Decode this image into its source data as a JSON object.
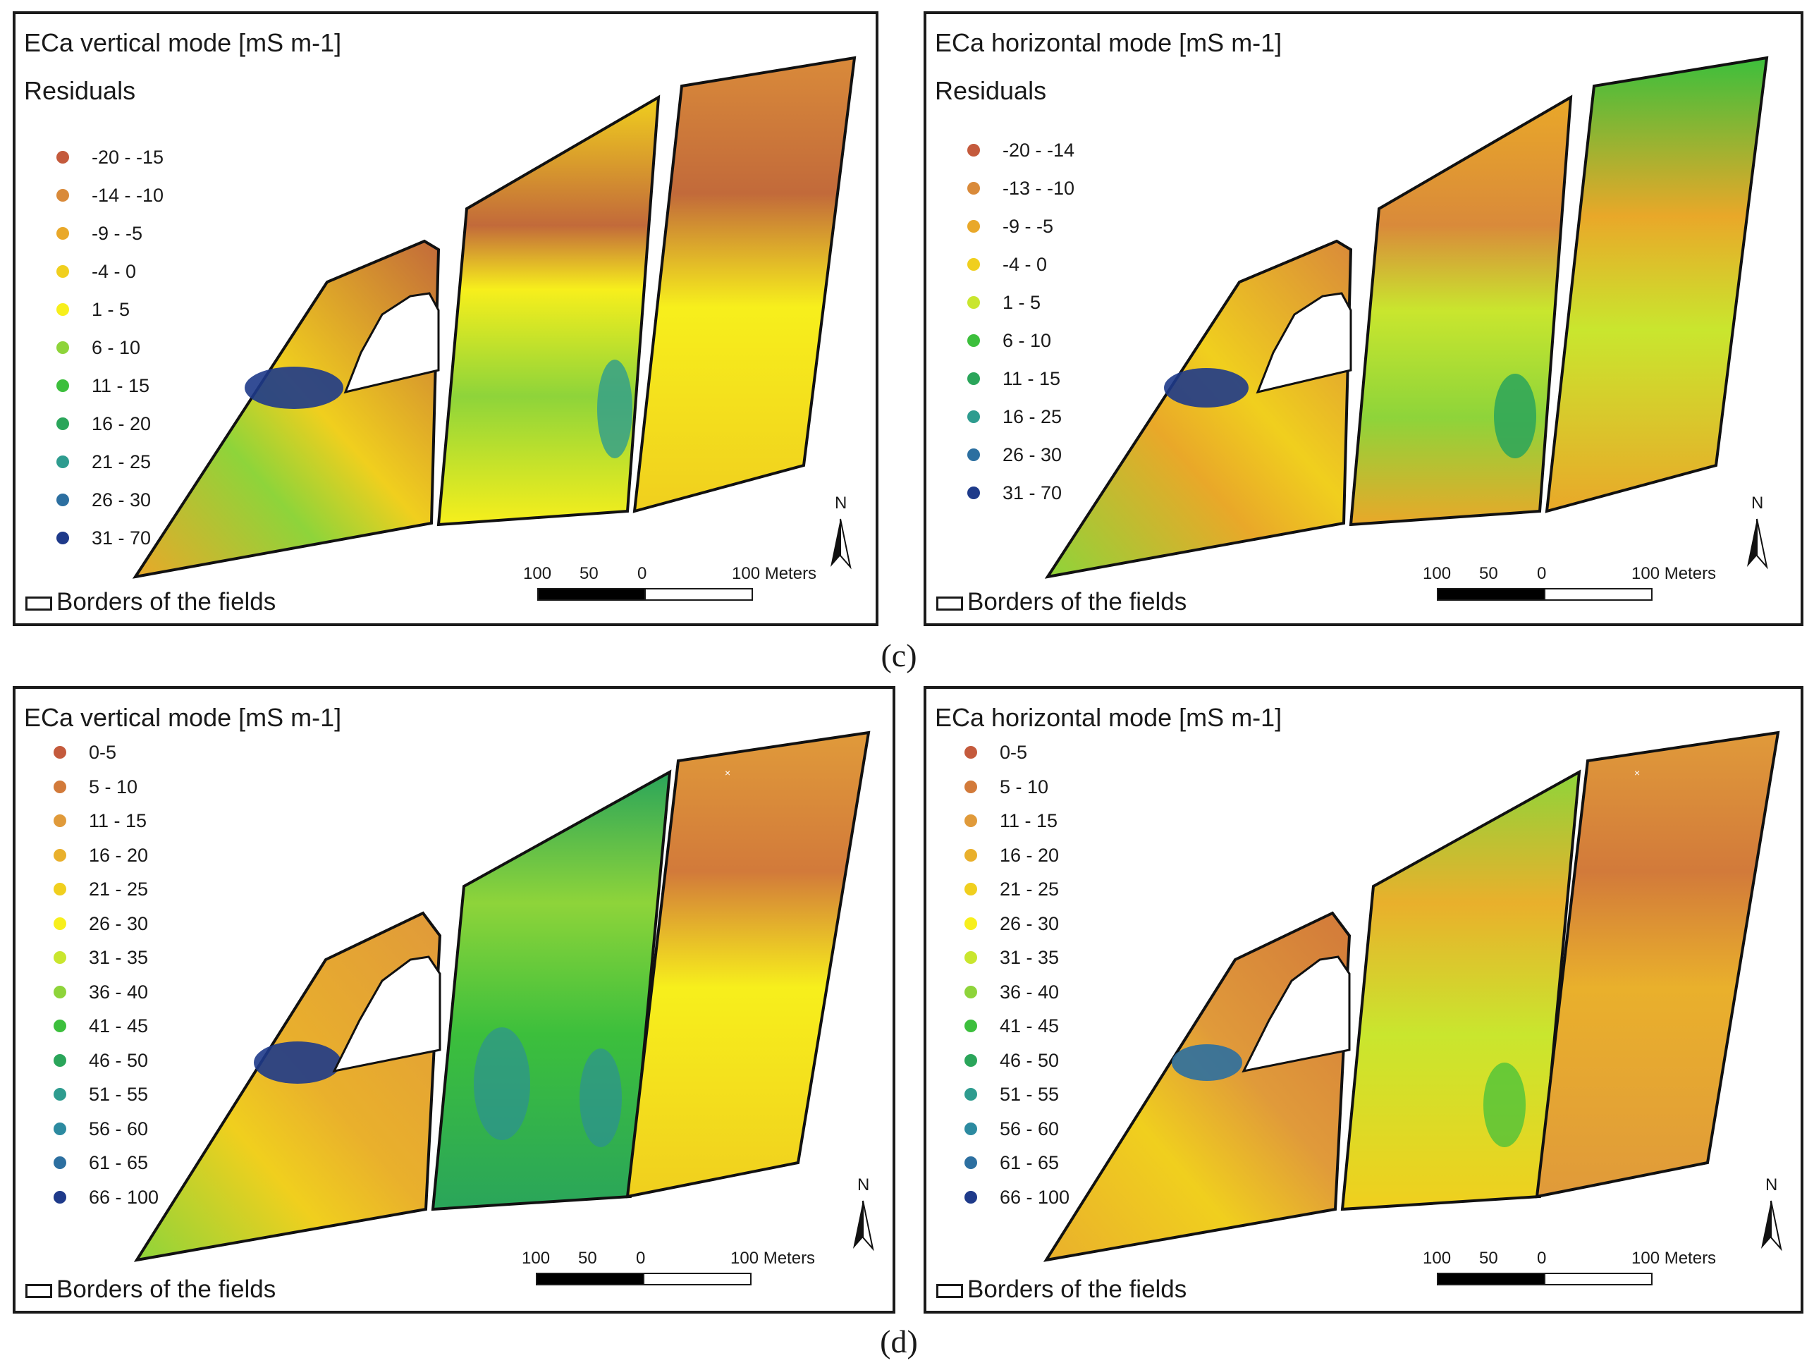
{
  "figure": {
    "captions": [
      "(c)",
      "(d)"
    ]
  },
  "colors": {
    "dark_blue": "#1e3a8a",
    "blue": "#2c6fa0",
    "teal": "#2e9c8f",
    "green_dark": "#2aa55a",
    "green": "#3cbf3c",
    "green_light": "#8ed43a",
    "yellow_green": "#c9e62e",
    "yellow": "#f7ef1c",
    "yellow_orange": "#f0cf1e",
    "orange": "#e9a829",
    "orange_dark": "#d98a3a",
    "brown": "#c26a3a",
    "red_brown": "#c45a3c"
  },
  "panels": [
    {
      "id": "c-left",
      "title": "ECa vertical mode  [mS m-1]",
      "subtitle": "Residuals",
      "legend": [
        {
          "label": "-20 - -15",
          "color": "#c45a3c"
        },
        {
          "label": "-14 - -10",
          "color": "#d98a3a"
        },
        {
          "label": "-9 - -5",
          "color": "#e9a829"
        },
        {
          "label": "-4 - 0",
          "color": "#f0cf1e"
        },
        {
          "label": "1 - 5",
          "color": "#f7ef1c"
        },
        {
          "label": "6 - 10",
          "color": "#8ed43a"
        },
        {
          "label": "11 - 15",
          "color": "#3cbf3c"
        },
        {
          "label": "16 - 20",
          "color": "#2aa55a"
        },
        {
          "label": "21 - 25",
          "color": "#2e9c8f"
        },
        {
          "label": "26 - 30",
          "color": "#2c6fa0"
        },
        {
          "label": "31 - 70",
          "color": "#1e3a8a"
        }
      ],
      "borders_label": "Borders of the fields",
      "scale": {
        "ticks": [
          "100",
          "50",
          "0",
          "100 Meters"
        ]
      },
      "north": "N"
    },
    {
      "id": "c-right",
      "title": "ECa horizontal mode  [mS m-1]",
      "subtitle": "Residuals",
      "legend": [
        {
          "label": "-20 - -14",
          "color": "#c45a3c"
        },
        {
          "label": "-13 - -10",
          "color": "#d98a3a"
        },
        {
          "label": "-9 - -5",
          "color": "#e9a829"
        },
        {
          "label": "-4 - 0",
          "color": "#f0cf1e"
        },
        {
          "label": "1 - 5",
          "color": "#c9e62e"
        },
        {
          "label": "6 - 10",
          "color": "#3cbf3c"
        },
        {
          "label": "11 - 15",
          "color": "#2aa55a"
        },
        {
          "label": "16 - 25",
          "color": "#2e9c8f"
        },
        {
          "label": "26 - 30",
          "color": "#2c6fa0"
        },
        {
          "label": "31 - 70",
          "color": "#1e3a8a"
        }
      ],
      "borders_label": "Borders of the fields",
      "scale": {
        "ticks": [
          "100",
          "50",
          "0",
          "100 Meters"
        ]
      },
      "north": "N"
    },
    {
      "id": "d-left",
      "title": "ECa vertical mode  [mS m-1]",
      "subtitle": "",
      "legend": [
        {
          "label": "0-5",
          "color": "#c45a3c"
        },
        {
          "label": "5 - 10",
          "color": "#d27a3a"
        },
        {
          "label": "11 - 15",
          "color": "#e09a3a"
        },
        {
          "label": "16 - 20",
          "color": "#e9b02c"
        },
        {
          "label": "21 - 25",
          "color": "#f0cf1e"
        },
        {
          "label": "26 - 30",
          "color": "#f7ef1c"
        },
        {
          "label": "31 - 35",
          "color": "#c9e62e"
        },
        {
          "label": "36 - 40",
          "color": "#8ed43a"
        },
        {
          "label": "41 - 45",
          "color": "#3cbf3c"
        },
        {
          "label": "46 - 50",
          "color": "#2aa55a"
        },
        {
          "label": "51 - 55",
          "color": "#2e9c8f"
        },
        {
          "label": "56 - 60",
          "color": "#2c8aa0"
        },
        {
          "label": "61 - 65",
          "color": "#2c6fa0"
        },
        {
          "label": "66 - 100",
          "color": "#1e3a8a"
        }
      ],
      "borders_label": "Borders of the fields",
      "scale": {
        "ticks": [
          "100",
          "50",
          "0",
          "100 Meters"
        ]
      },
      "north": "N"
    },
    {
      "id": "d-right",
      "title": "ECa horizontal mode  [mS m-1]",
      "subtitle": "",
      "legend": [
        {
          "label": "0-5",
          "color": "#c45a3c"
        },
        {
          "label": "5 - 10",
          "color": "#d27a3a"
        },
        {
          "label": "11 - 15",
          "color": "#e09a3a"
        },
        {
          "label": "16 - 20",
          "color": "#e9b02c"
        },
        {
          "label": "21 - 25",
          "color": "#f0cf1e"
        },
        {
          "label": "26 - 30",
          "color": "#f7ef1c"
        },
        {
          "label": "31 - 35",
          "color": "#c9e62e"
        },
        {
          "label": "36 - 40",
          "color": "#8ed43a"
        },
        {
          "label": "41 - 45",
          "color": "#3cbf3c"
        },
        {
          "label": "46 - 50",
          "color": "#2aa55a"
        },
        {
          "label": "51 - 55",
          "color": "#2e9c8f"
        },
        {
          "label": "56 - 60",
          "color": "#2c8aa0"
        },
        {
          "label": "61 - 65",
          "color": "#2c6fa0"
        },
        {
          "label": "66 - 100",
          "color": "#1e3a8a"
        }
      ],
      "borders_label": "Borders of the fields",
      "scale": {
        "ticks": [
          "100",
          "50",
          "0",
          "100 Meters"
        ]
      },
      "north": "N"
    }
  ]
}
